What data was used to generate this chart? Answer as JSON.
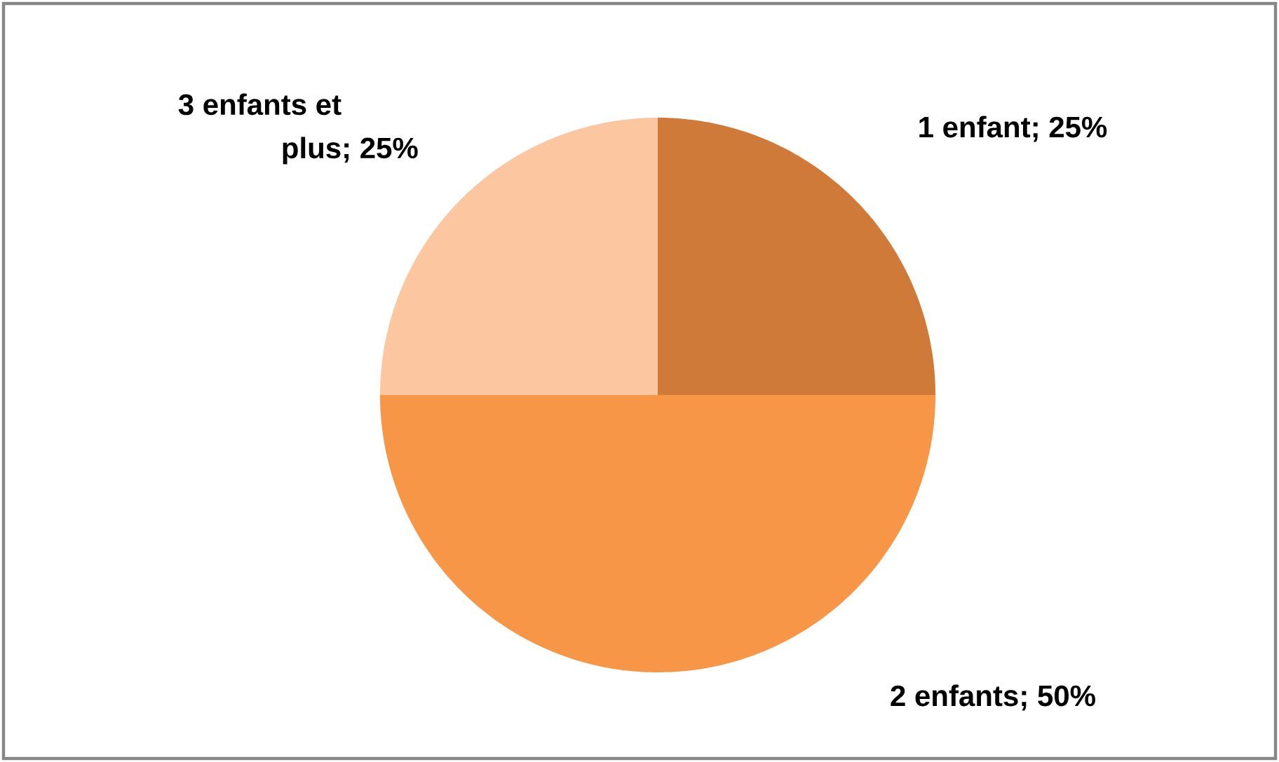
{
  "chart_data": {
    "type": "pie",
    "categories": [
      "1 enfant",
      "2 enfants",
      "3 enfants et plus"
    ],
    "values": [
      25,
      50,
      25
    ],
    "value_labels": [
      "; 25%",
      "; 50%",
      "; 25%"
    ],
    "colors": [
      "#cf7a38",
      "#f79646",
      "#fbc6a0"
    ]
  }
}
